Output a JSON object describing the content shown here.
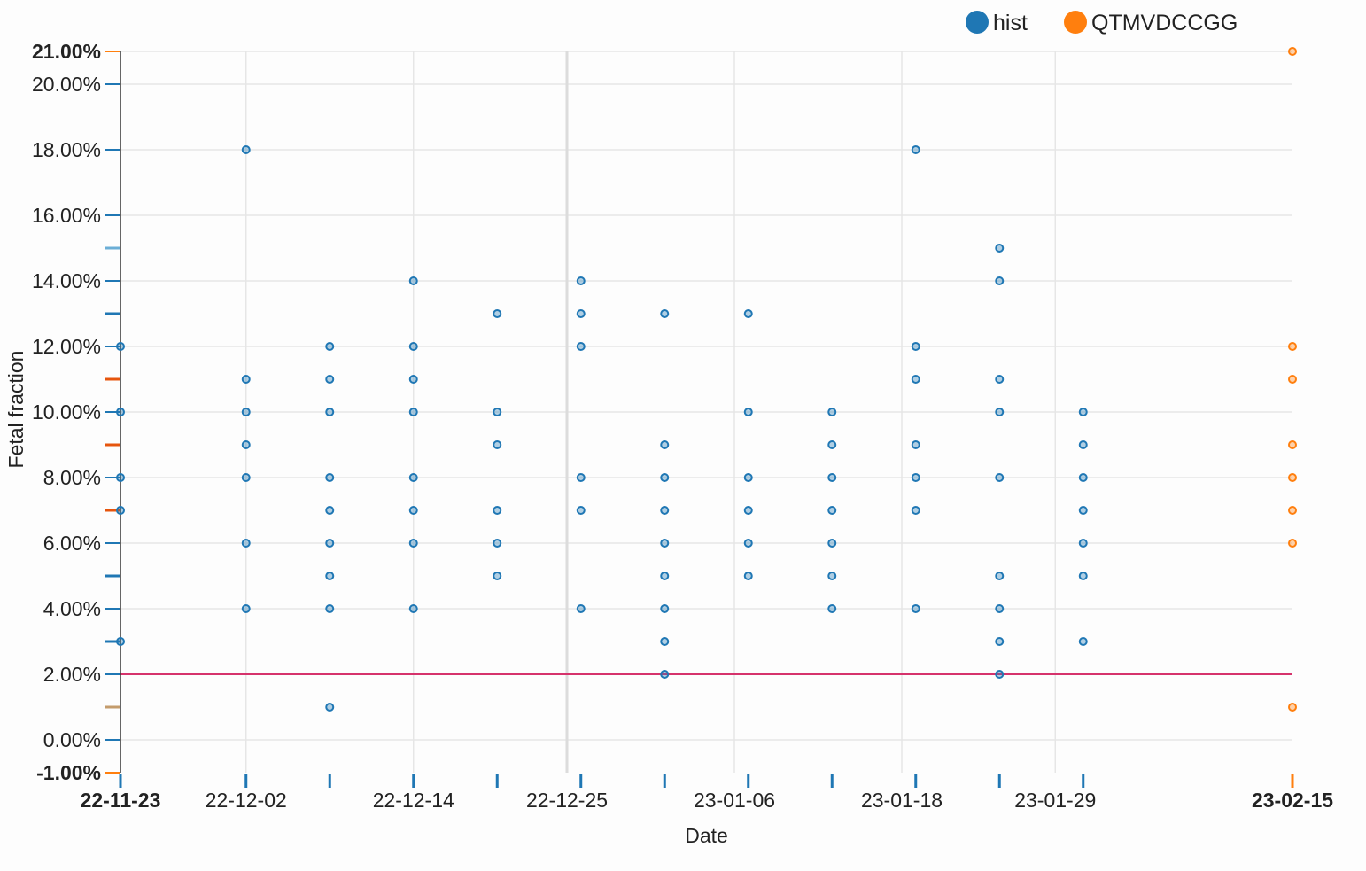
{
  "chart_data": {
    "type": "scatter",
    "xlabel": "Date",
    "ylabel": "Fetal fraction",
    "y_unit": "%",
    "ylim": [
      -1.0,
      21.0
    ],
    "xlim": [
      "2022-11-23",
      "2023-02-15"
    ],
    "grid": true,
    "legend_placement": "top-right",
    "x_ticks": [
      {
        "date": "2022-11-23",
        "label": "22-11-23",
        "bold": true
      },
      {
        "date": "2022-12-02",
        "label": "22-12-02",
        "bold": false
      },
      {
        "date": "2022-12-14",
        "label": "22-12-14",
        "bold": false
      },
      {
        "date": "2022-12-25",
        "label": "22-12-25",
        "bold": false
      },
      {
        "date": "2023-01-06",
        "label": "23-01-06",
        "bold": false
      },
      {
        "date": "2023-01-18",
        "label": "23-01-18",
        "bold": false
      },
      {
        "date": "2023-01-29",
        "label": "23-01-29",
        "bold": false
      },
      {
        "date": "2023-02-15",
        "label": "23-02-15",
        "bold": true
      }
    ],
    "y_ticks": [
      {
        "value": 21.0,
        "label": "21.00%",
        "bold": true
      },
      {
        "value": 20.0,
        "label": "20.00%",
        "bold": false
      },
      {
        "value": 18.0,
        "label": "18.00%",
        "bold": false
      },
      {
        "value": 16.0,
        "label": "16.00%",
        "bold": false
      },
      {
        "value": 14.0,
        "label": "14.00%",
        "bold": false
      },
      {
        "value": 12.0,
        "label": "12.00%",
        "bold": false
      },
      {
        "value": 10.0,
        "label": "10.00%",
        "bold": false
      },
      {
        "value": 8.0,
        "label": "8.00%",
        "bold": false
      },
      {
        "value": 6.0,
        "label": "6.00%",
        "bold": false
      },
      {
        "value": 4.0,
        "label": "4.00%",
        "bold": false
      },
      {
        "value": 2.0,
        "label": "2.00%",
        "bold": false
      },
      {
        "value": 0.0,
        "label": "0.00%",
        "bold": false
      },
      {
        "value": -1.0,
        "label": "-1.00%",
        "bold": true
      }
    ],
    "threshold": {
      "value": 2.0,
      "color": "#d6336c"
    },
    "series": [
      {
        "name": "hist",
        "color": "#1f77b4",
        "points": [
          {
            "x": "2022-11-23",
            "y": [
              12,
              10,
              8,
              7,
              3
            ]
          },
          {
            "x": "2022-12-02",
            "y": [
              18,
              11,
              10,
              9,
              8,
              6,
              4
            ]
          },
          {
            "x": "2022-12-08",
            "y": [
              12,
              11,
              10,
              8,
              7,
              6,
              5,
              4,
              1
            ]
          },
          {
            "x": "2022-12-14",
            "y": [
              14,
              12,
              11,
              10,
              8,
              7,
              6,
              4
            ]
          },
          {
            "x": "2022-12-20",
            "y": [
              13,
              10,
              9,
              7,
              6,
              5
            ]
          },
          {
            "x": "2022-12-26",
            "y": [
              14,
              13,
              12,
              8,
              7,
              4
            ]
          },
          {
            "x": "2023-01-01",
            "y": [
              13,
              9,
              8,
              7,
              6,
              5,
              4,
              3,
              2
            ]
          },
          {
            "x": "2023-01-07",
            "y": [
              13,
              10,
              8,
              7,
              6,
              5
            ]
          },
          {
            "x": "2023-01-13",
            "y": [
              10,
              9,
              8,
              7,
              6,
              5,
              4
            ]
          },
          {
            "x": "2023-01-19",
            "y": [
              18,
              12,
              11,
              9,
              8,
              7,
              4
            ]
          },
          {
            "x": "2023-01-25",
            "y": [
              15,
              14,
              11,
              10,
              8,
              5,
              4,
              3,
              2
            ]
          },
          {
            "x": "2023-01-31",
            "y": [
              10,
              9,
              8,
              7,
              6,
              5,
              3
            ]
          }
        ]
      },
      {
        "name": "QTMVDCCGG",
        "color": "#ff7f0e",
        "points": [
          {
            "x": "2023-02-15",
            "y": [
              21,
              12,
              11,
              9,
              8,
              7,
              6,
              1
            ]
          }
        ]
      }
    ],
    "rug_ticks": [
      {
        "value": 15,
        "color": "#6baed6"
      },
      {
        "value": 13,
        "color": "#1f77b4"
      },
      {
        "value": 11,
        "color": "#e6550d"
      },
      {
        "value": 9,
        "color": "#e6550d"
      },
      {
        "value": 7,
        "color": "#e6550d"
      },
      {
        "value": 5,
        "color": "#1f77b4"
      },
      {
        "value": 3,
        "color": "#1f77b4"
      },
      {
        "value": 1,
        "color": "#c49c6c"
      }
    ],
    "x_rug_dates": [
      {
        "date": "2022-11-23",
        "color": "#1f77b4"
      },
      {
        "date": "2022-12-02",
        "color": "#1f77b4"
      },
      {
        "date": "2022-12-08",
        "color": "#1f77b4"
      },
      {
        "date": "2022-12-14",
        "color": "#1f77b4"
      },
      {
        "date": "2022-12-20",
        "color": "#1f77b4"
      },
      {
        "date": "2022-12-26",
        "color": "#1f77b4"
      },
      {
        "date": "2023-01-01",
        "color": "#1f77b4"
      },
      {
        "date": "2023-01-07",
        "color": "#1f77b4"
      },
      {
        "date": "2023-01-13",
        "color": "#1f77b4"
      },
      {
        "date": "2023-01-19",
        "color": "#1f77b4"
      },
      {
        "date": "2023-01-25",
        "color": "#1f77b4"
      },
      {
        "date": "2023-01-31",
        "color": "#1f77b4"
      },
      {
        "date": "2023-02-15",
        "color": "#ff7f0e"
      }
    ]
  }
}
